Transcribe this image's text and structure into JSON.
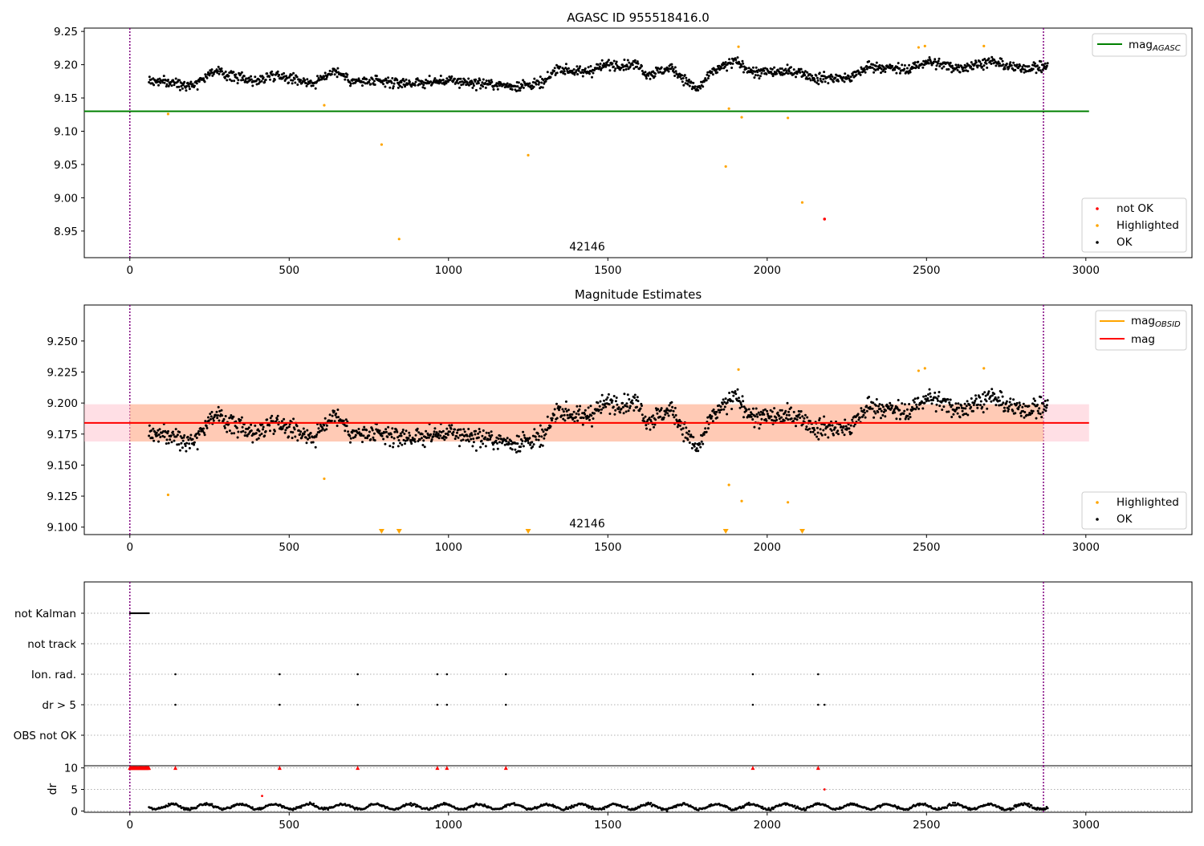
{
  "chart_data": [
    {
      "type": "scatter",
      "title": "AGASC ID 955518416.0",
      "xlabel": "",
      "ylabel": "",
      "xlim": [
        -143,
        3333
      ],
      "ylim": [
        8.91,
        9.255
      ],
      "xticks": [
        0,
        500,
        1000,
        1500,
        2000,
        2500,
        3000
      ],
      "yticks": [
        8.95,
        9.0,
        9.05,
        9.1,
        9.15,
        9.2,
        9.25
      ],
      "ytick_labels": [
        "8.95",
        "9.00",
        "9.05",
        "9.10",
        "9.15",
        "9.20",
        "9.25"
      ],
      "obsid_label": "42146",
      "obsid_label_x": 1435,
      "obsid_bounds": [
        0,
        2867
      ],
      "mag_agasc": 9.13,
      "mag_agasc_xrange": [
        -143,
        3010
      ],
      "series": [
        {
          "name": "OK",
          "color": "#000000",
          "baseline": "light_curve",
          "x_range": [
            60,
            2880
          ],
          "count": 1500
        },
        {
          "name": "Highlighted",
          "color": "#ffa500",
          "x": [
            120,
            610,
            790,
            845,
            1250,
            1870,
            1880,
            1910,
            1920,
            2065,
            2110,
            2475,
            2495,
            2680
          ],
          "y": [
            9.126,
            9.139,
            9.08,
            8.938,
            9.064,
            9.047,
            9.134,
            9.227,
            9.121,
            9.12,
            8.993,
            9.226,
            9.228,
            9.228
          ]
        },
        {
          "name": "not OK",
          "color": "#ff0000",
          "x": [
            2180
          ],
          "y": [
            8.968
          ]
        }
      ],
      "legend_top": [
        {
          "label": "mag",
          "sub": "AGASC",
          "color": "#008000"
        }
      ],
      "legend_bottom": [
        {
          "label": "not OK",
          "color": "#ff0000"
        },
        {
          "label": "Highlighted",
          "color": "#ffa500"
        },
        {
          "label": "OK",
          "color": "#000000"
        }
      ]
    },
    {
      "type": "scatter",
      "title": "Magnitude Estimates",
      "xlabel": "",
      "ylabel": "",
      "xlim": [
        -143,
        3333
      ],
      "ylim": [
        9.094,
        9.279
      ],
      "xticks": [
        0,
        500,
        1000,
        1500,
        2000,
        2500,
        3000
      ],
      "yticks": [
        9.1,
        9.125,
        9.15,
        9.175,
        9.2,
        9.225,
        9.25
      ],
      "ytick_labels": [
        "9.100",
        "9.125",
        "9.150",
        "9.175",
        "9.200",
        "9.225",
        "9.250"
      ],
      "obsid_label": "42146",
      "obsid_label_x": 1435,
      "obsid_bounds": [
        0,
        2867
      ],
      "mag": 9.184,
      "mag_band": [
        9.169,
        9.199
      ],
      "mag_band_xrange": [
        -143,
        3010
      ],
      "mag_obsid": 9.184,
      "mag_obsid_band": [
        9.169,
        9.199
      ],
      "mag_obsid_xrange": [
        0,
        2867
      ],
      "series": [
        {
          "name": "OK",
          "color": "#000000",
          "baseline": "light_curve",
          "x_range": [
            60,
            2880
          ],
          "count": 1500
        },
        {
          "name": "Highlighted",
          "color": "#ffa500",
          "x": [
            120,
            610,
            1880,
            1910,
            1920,
            2065,
            2475,
            2495,
            2680
          ],
          "y": [
            9.126,
            9.139,
            9.134,
            9.227,
            9.121,
            9.12,
            9.226,
            9.228,
            9.228
          ]
        },
        {
          "name": "Highlighted (below range)",
          "color": "#ffa500",
          "marker": "triangle-down",
          "x": [
            790,
            845,
            1250,
            1870,
            2110
          ]
        }
      ],
      "legend_top": [
        {
          "label": "mag",
          "sub": "OBSID",
          "color": "#ffa500"
        },
        {
          "label": "mag",
          "sub": "",
          "color": "#ff0000"
        }
      ],
      "legend_bottom": [
        {
          "label": "Highlighted",
          "color": "#ffa500"
        },
        {
          "label": "OK",
          "color": "#000000"
        }
      ]
    },
    {
      "type": "scatter",
      "title": "",
      "xlabel": "",
      "ylabel": "",
      "xlim": [
        -143,
        3333
      ],
      "categories": [
        "not Kalman",
        "not track",
        "Ion. rad.",
        "dr > 5",
        "OBS not OK"
      ],
      "obsid_bounds": [
        0,
        2867
      ],
      "flags": {
        "not Kalman": {
          "x_range": [
            0,
            60
          ],
          "count": 28
        },
        "not track": {
          "x": []
        },
        "Ion. rad.": {
          "x": [
            143,
            470,
            715,
            965,
            995,
            1180,
            1955,
            2160
          ]
        },
        "dr > 5": {
          "x": [
            143,
            470,
            715,
            965,
            995,
            1180,
            1955,
            2160,
            2180
          ]
        },
        "OBS not OK": {
          "x": []
        }
      }
    },
    {
      "type": "scatter",
      "title": "",
      "xlabel": "",
      "ylabel": "dr",
      "xlim": [
        -143,
        3333
      ],
      "ylim": [
        -0.3,
        10.5
      ],
      "xticks": [
        0,
        500,
        1000,
        1500,
        2000,
        2500,
        3000
      ],
      "yticks": [
        0,
        5,
        10
      ],
      "ytick_labels": [
        "0",
        "5",
        "10"
      ],
      "obsid_bounds": [
        0,
        2867
      ],
      "series": [
        {
          "name": "dr",
          "color": "#000000",
          "baseline": "dr_low",
          "x_range": [
            60,
            2880
          ],
          "count": 1000
        },
        {
          "name": "dr clipped",
          "color": "#ff0000",
          "marker": "triangle-up",
          "x": [
            143,
            470,
            715,
            965,
            995,
            1180,
            1955,
            2160
          ]
        },
        {
          "name": "dr clipped (not Kalman)",
          "color": "#ff0000",
          "marker": "triangle-up",
          "x_range": [
            0,
            60
          ],
          "count": 28
        },
        {
          "name": "dr outliers",
          "color": "#ff0000",
          "x": [
            415,
            2180
          ],
          "y": [
            3.5,
            5.0
          ]
        }
      ]
    }
  ]
}
